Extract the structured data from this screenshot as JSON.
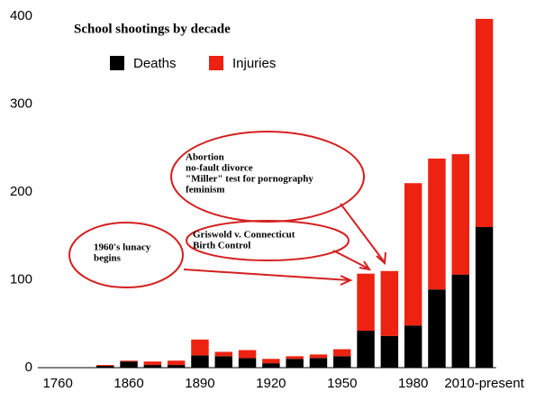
{
  "chart_data": {
    "type": "stacked-bar",
    "title": "School shootings by decade",
    "categories": [
      "1760",
      null,
      null,
      "1860",
      null,
      null,
      "1890",
      null,
      null,
      "1920",
      null,
      null,
      "1950",
      null,
      null,
      "1980",
      null,
      null,
      "2010-present"
    ],
    "series": [
      {
        "name": "Deaths",
        "color": "#000000",
        "values": [
          0,
          0,
          2,
          7,
          3,
          3,
          14,
          13,
          11,
          5,
          10,
          11,
          13,
          42,
          36,
          48,
          89,
          106,
          160
        ]
      },
      {
        "name": "Injuries",
        "color": "#ee2211",
        "values": [
          0,
          0,
          1,
          1,
          4,
          5,
          18,
          5,
          9,
          5,
          3,
          4,
          8,
          65,
          74,
          162,
          149,
          137,
          237
        ]
      }
    ],
    "ylim": [
      0,
      400
    ],
    "yticks": [
      0,
      100,
      200,
      300,
      400
    ],
    "grid": false,
    "legend": "top-left",
    "annotations": [
      {
        "lines": [
          "Abortion",
          "no-fault divorce",
          "\"Miller\" test for pornography",
          "feminism"
        ]
      },
      {
        "lines": [
          "Griswold v. Connecticut",
          "Birth Control"
        ]
      },
      {
        "lines": [
          "1960's lunacy",
          "begins"
        ]
      }
    ]
  }
}
